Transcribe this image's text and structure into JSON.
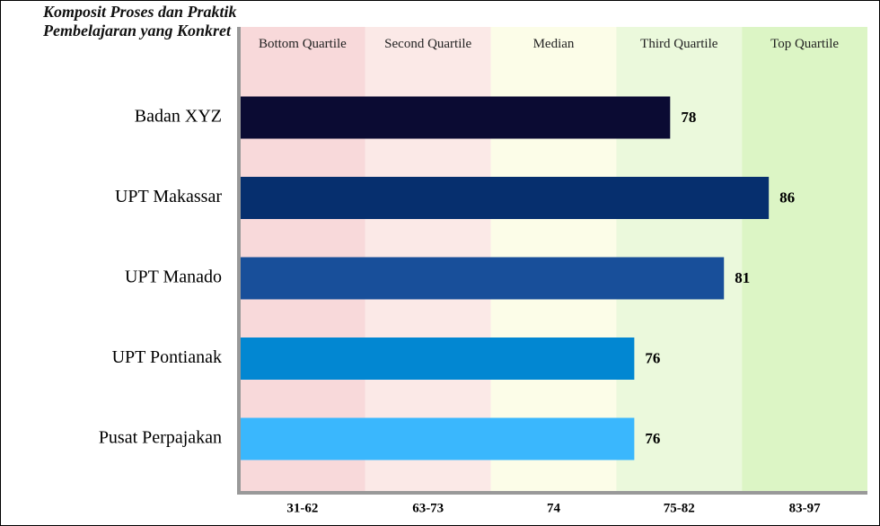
{
  "chart_data": {
    "type": "bar",
    "orientation": "horizontal",
    "title": "Komposit Proses dan Praktik Pembelajaran yang Konkret",
    "categories": [
      "Badan XYZ",
      "UPT Makassar",
      "UPT Manado",
      "UPT Pontianak",
      "Pusat Perpajakan"
    ],
    "values": [
      78,
      86,
      81,
      76,
      76
    ],
    "colors": [
      "#0b0b33",
      "#062f6e",
      "#184f9a",
      "#0287d2",
      "#3ab7fd"
    ],
    "bands": [
      {
        "name": "Bottom Quartile",
        "range": "31-62",
        "min": 31,
        "max": 62,
        "color": "#f8d9da"
      },
      {
        "name": "Second Quartile",
        "range": "63-73",
        "min": 63,
        "max": 73,
        "color": "#fbe9e7"
      },
      {
        "name": "Median",
        "range": "74",
        "min": 74,
        "max": 74,
        "color": "#fcfde8"
      },
      {
        "name": "Third Quartile",
        "range": "75-82",
        "min": 75,
        "max": 82,
        "color": "#ebf9dc"
      },
      {
        "name": "Top Quartile",
        "range": "83-97",
        "min": 83,
        "max": 97,
        "color": "#dcf5c5"
      }
    ]
  }
}
